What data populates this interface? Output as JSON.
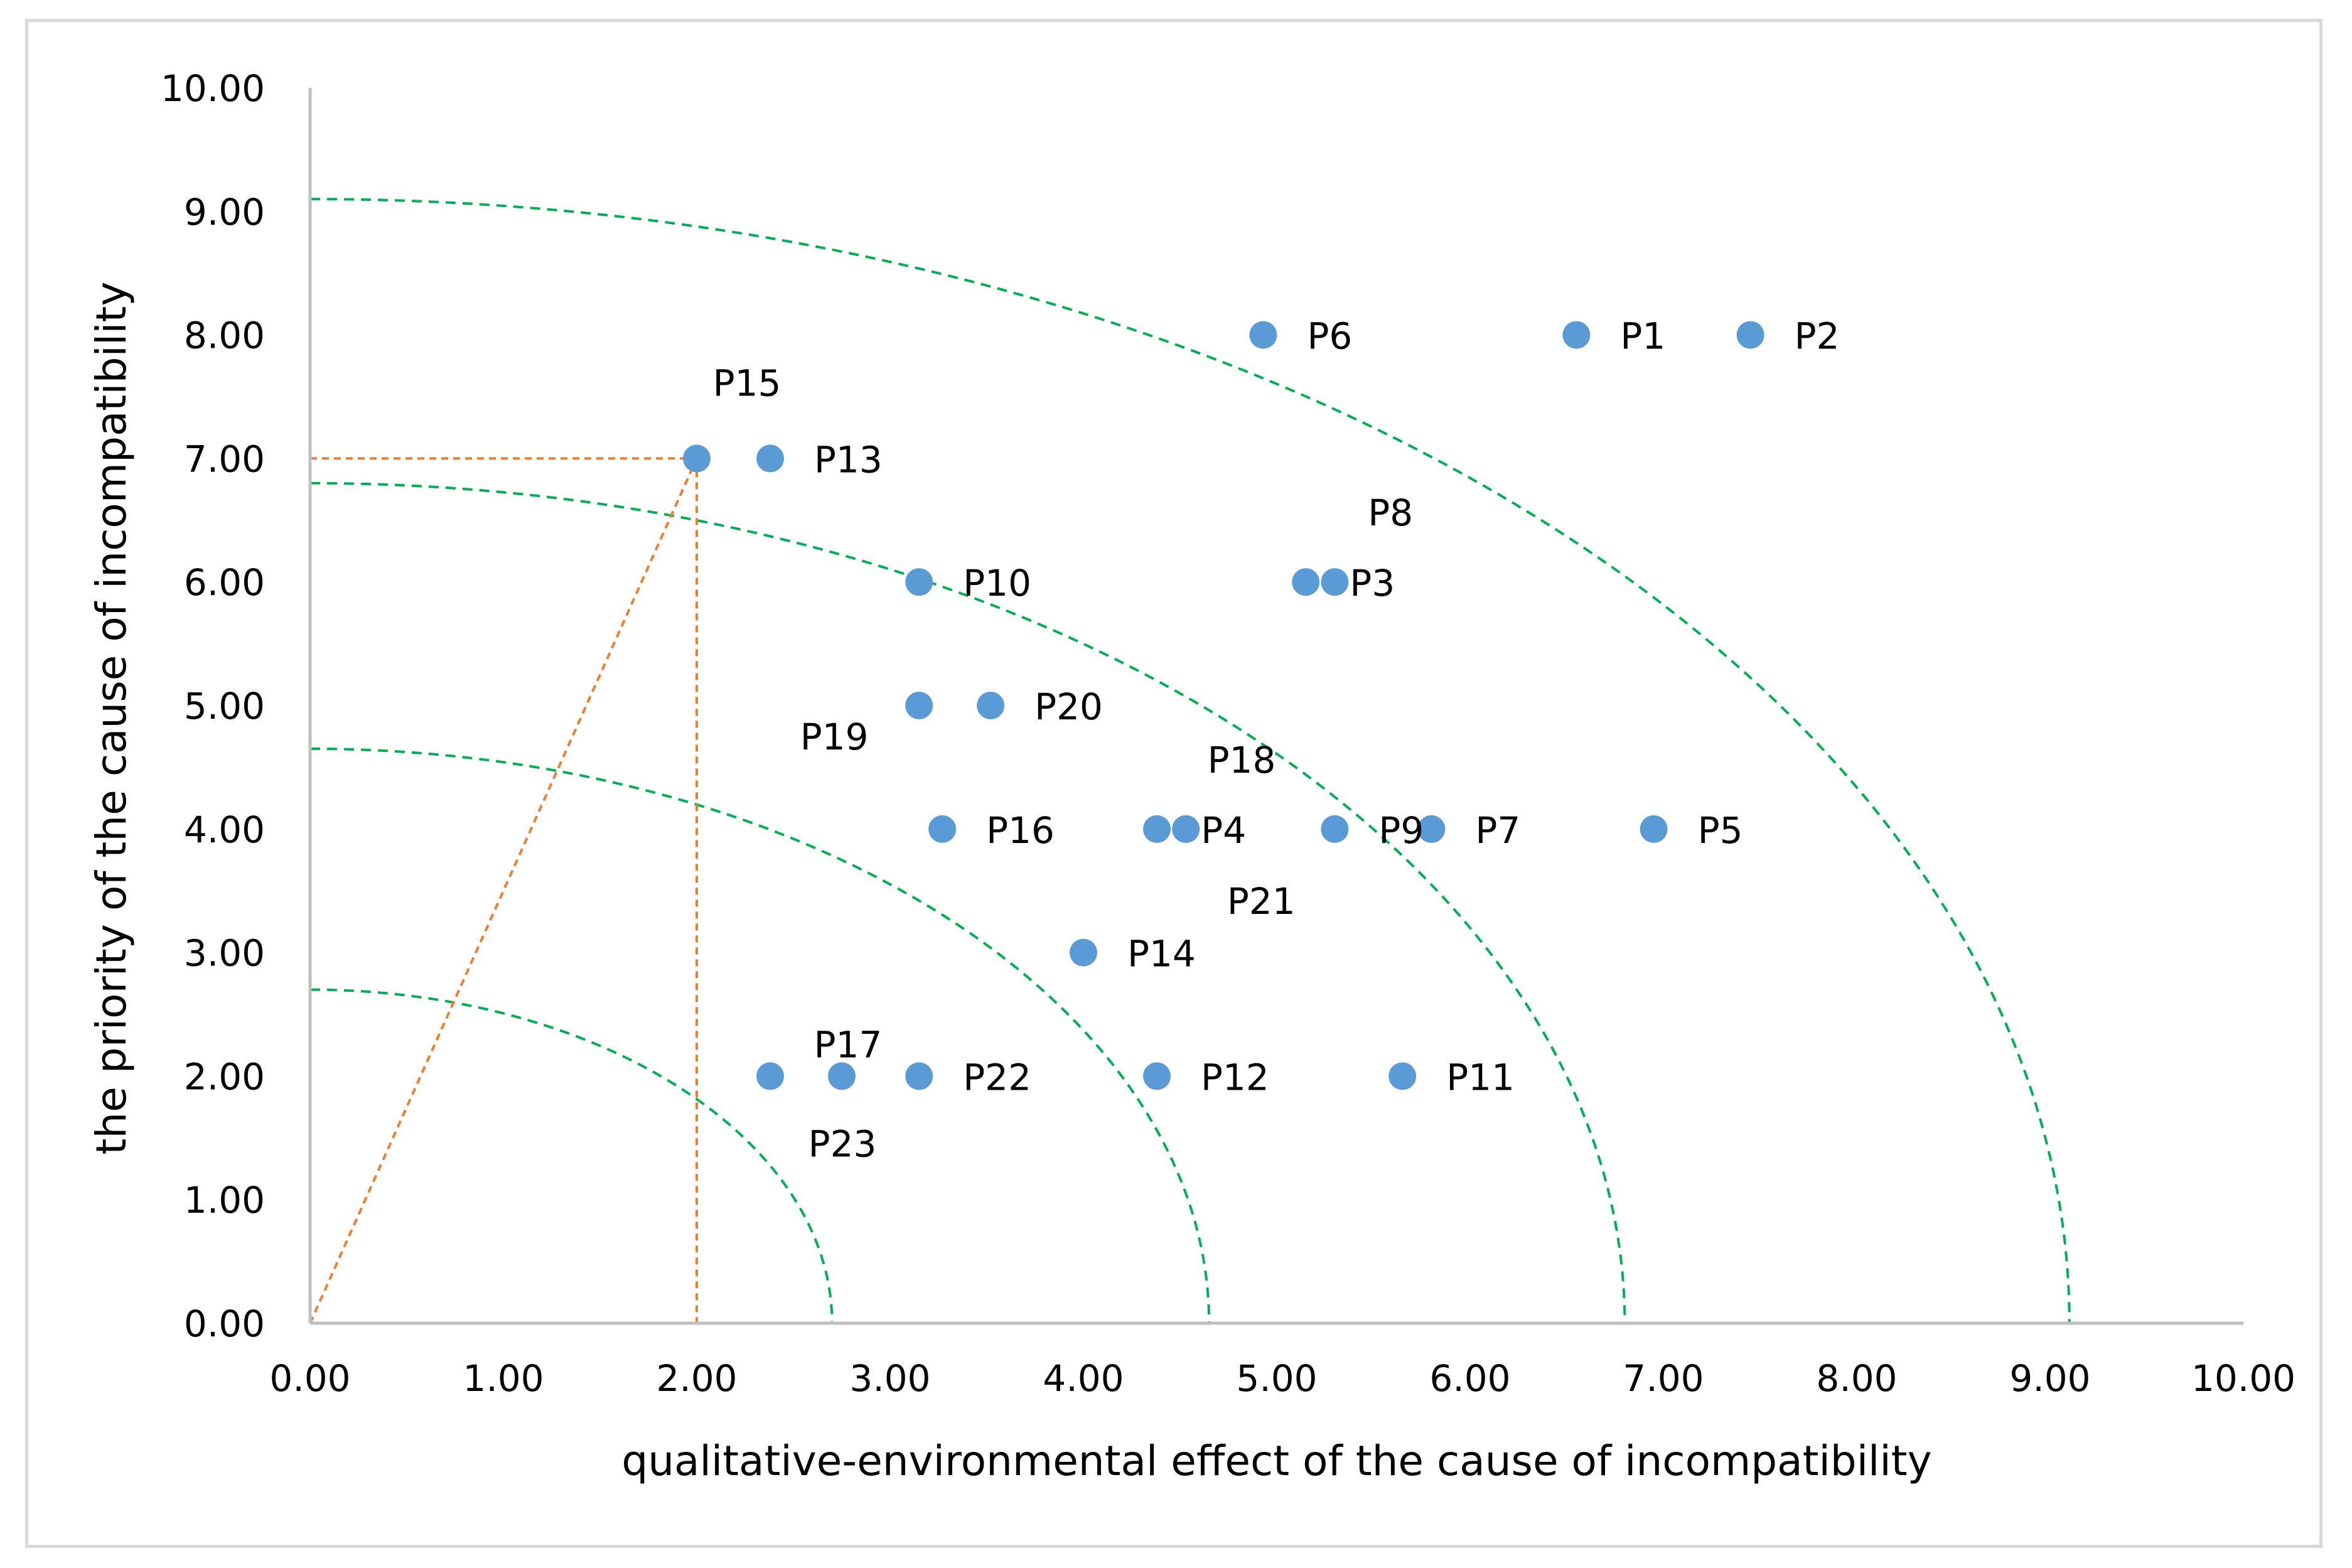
{
  "chart_data": {
    "type": "scatter",
    "title": "",
    "xlabel": "qualitative-environmental effect of the cause of incompatibility",
    "ylabel": "the priority of the cause of incompatibility",
    "xlim": [
      0,
      10
    ],
    "ylim": [
      0,
      10
    ],
    "x_ticks": [
      "0.00",
      "1.00",
      "2.00",
      "3.00",
      "4.00",
      "5.00",
      "6.00",
      "7.00",
      "8.00",
      "9.00",
      "10.00"
    ],
    "y_ticks": [
      "0.00",
      "1.00",
      "2.00",
      "3.00",
      "4.00",
      "5.00",
      "6.00",
      "7.00",
      "8.00",
      "9.00",
      "10.00"
    ],
    "grid": false,
    "colors": {
      "point": "#5b9bd5",
      "arc": "#00b050",
      "guide": "#ed7d31",
      "axis": "#bfbfbf"
    },
    "arcs": [
      {
        "radius": 2.7
      },
      {
        "radius": 4.65
      },
      {
        "radius": 6.8
      },
      {
        "radius": 9.1
      }
    ],
    "guides": [
      {
        "x": 2.0,
        "y": 7.0
      }
    ],
    "points": [
      {
        "label": "P1",
        "x": 6.55,
        "y": 8.0,
        "label_pos": "right"
      },
      {
        "label": "P2",
        "x": 7.45,
        "y": 8.0,
        "label_pos": "right"
      },
      {
        "label": "P3",
        "x": 5.3,
        "y": 6.0,
        "label_pos": "right-tight"
      },
      {
        "label": "P4",
        "x": 4.53,
        "y": 4.0,
        "label_pos": "right-tight"
      },
      {
        "label": "P5",
        "x": 6.95,
        "y": 4.0,
        "label_pos": "right"
      },
      {
        "label": "P6",
        "x": 4.93,
        "y": 8.0,
        "label_pos": "right"
      },
      {
        "label": "P7",
        "x": 5.8,
        "y": 4.0,
        "label_pos": "right"
      },
      {
        "label": "P8",
        "x": 5.15,
        "y": 6.0,
        "label_pos": "above-right"
      },
      {
        "label": "P9",
        "x": 5.3,
        "y": 4.0,
        "label_pos": "right"
      },
      {
        "label": "P10",
        "x": 3.15,
        "y": 6.0,
        "label_pos": "right"
      },
      {
        "label": "P11",
        "x": 5.65,
        "y": 2.0,
        "label_pos": "right"
      },
      {
        "label": "P12",
        "x": 4.38,
        "y": 2.0,
        "label_pos": "right"
      },
      {
        "label": "P13",
        "x": 2.38,
        "y": 7.0,
        "label_pos": "right"
      },
      {
        "label": "P14",
        "x": 4.0,
        "y": 3.0,
        "label_pos": "right"
      },
      {
        "label": "P15",
        "x": 2.0,
        "y": 7.0,
        "label_pos": "above"
      },
      {
        "label": "P16",
        "x": 3.27,
        "y": 4.0,
        "label_pos": "right"
      },
      {
        "label": "P17",
        "x": 2.75,
        "y": 2.0,
        "label_pos": "above-left"
      },
      {
        "label": "P18",
        "x": 4.38,
        "y": 4.0,
        "label_pos": "above-right"
      },
      {
        "label": "P19",
        "x": 3.15,
        "y": 5.0,
        "label_pos": "below-left"
      },
      {
        "label": "P20",
        "x": 3.52,
        "y": 5.0,
        "label_pos": "right"
      },
      {
        "label": "P21",
        "x": 4.53,
        "y": 4.0,
        "label_pos": "below-right"
      },
      {
        "label": "P22",
        "x": 3.15,
        "y": 2.0,
        "label_pos": "right"
      },
      {
        "label": "P23",
        "x": 2.38,
        "y": 2.0,
        "label_pos": "below"
      }
    ]
  }
}
